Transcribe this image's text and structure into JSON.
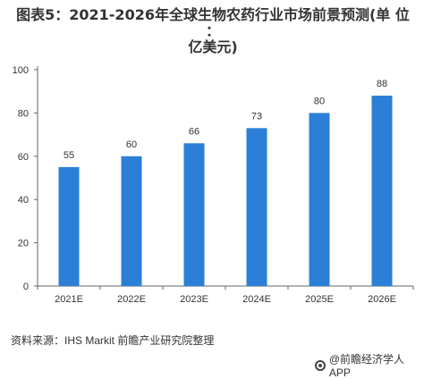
{
  "title_line1": "图表5：2021-2026年全球生物农药行业市场前景预测(单 位 ：",
  "title_line2": "亿美元)",
  "source": "资料来源：IHS Markit 前瞻产业研究院整理",
  "credit": "@前瞻经济学人APP",
  "colors": {
    "bar": "#2b7fd6",
    "axis": "#666666",
    "text": "#333333"
  },
  "chart_data": {
    "type": "bar",
    "title": "图表5：2021-2026年全球生物农药行业市场前景预测(单 位 ：亿美元)",
    "categories": [
      "2021E",
      "2022E",
      "2023E",
      "2024E",
      "2025E",
      "2026E"
    ],
    "values": [
      55,
      60,
      66,
      73,
      80,
      88
    ],
    "ylim": [
      0,
      100
    ],
    "yticks": [
      0,
      20,
      40,
      60,
      80,
      100
    ],
    "xlabel": "",
    "ylabel": "",
    "grid": false,
    "data_labels": true
  }
}
